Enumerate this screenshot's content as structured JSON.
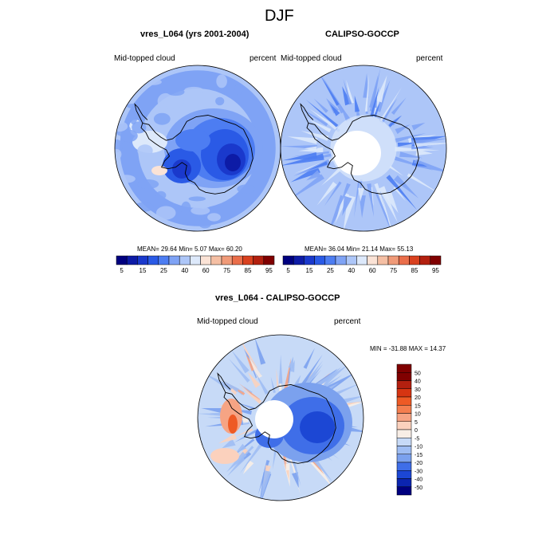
{
  "page_title": "DJF",
  "panels": [
    {
      "title": "vres_L064 (yrs 2001-2004)",
      "left_label": "Mid-topped cloud",
      "right_label": "percent",
      "stats": "MEAN=  29.64  Min=   5.07  Max=  60.20",
      "mean": 29.64,
      "min": 5.07,
      "max": 60.2,
      "colorbar_ticks": [
        "5",
        "15",
        "25",
        "40",
        "60",
        "75",
        "85",
        "95"
      ]
    },
    {
      "title": "CALIPSO-GOCCP",
      "left_label": "Mid-topped cloud",
      "right_label": "percent",
      "stats": "MEAN=  36.04  Min=  21.14  Max=  55.13",
      "mean": 36.04,
      "min": 21.14,
      "max": 55.13,
      "colorbar_ticks": [
        "5",
        "15",
        "25",
        "40",
        "60",
        "75",
        "85",
        "95"
      ]
    },
    {
      "title": "vres_L064 - CALIPSO-GOCCP",
      "left_label": "Mid-topped cloud",
      "right_label": "percent",
      "stats": "MIN = -31.88 MAX =  14.37",
      "min": -31.88,
      "max": 14.37,
      "colorbar_ticks": [
        "50",
        "40",
        "30",
        "20",
        "15",
        "10",
        "5",
        "0",
        "-5",
        "-10",
        "-15",
        "-20",
        "-30",
        "-40",
        "-50"
      ]
    }
  ],
  "colors": {
    "abs_scale": [
      "#00007f",
      "#0d1ba6",
      "#1a39cc",
      "#2a5ae6",
      "#4d7df2",
      "#7fa3f5",
      "#adc6f8",
      "#dde9fb",
      "#fbe3d6",
      "#f5bfa4",
      "#f09a78",
      "#ea6e4a",
      "#d9411f",
      "#b3200f",
      "#800000"
    ],
    "diff_scale": [
      "#800000",
      "#b3200f",
      "#d63512",
      "#ee5a25",
      "#f47e4f",
      "#f6a484",
      "#fbd1bd",
      "#f8eee6",
      "#c7daf7",
      "#9fbdf3",
      "#7ba1ee",
      "#3f6ee8",
      "#1c47d4",
      "#0b25b0",
      "#00007f"
    ]
  },
  "chart_data": [
    {
      "type": "heatmap",
      "projection": "south-polar-stereographic",
      "title": "vres_L064 (yrs 2001-2004)",
      "variable": "Mid-topped cloud",
      "units": "percent",
      "levels": [
        5,
        10,
        15,
        20,
        25,
        30,
        35,
        40,
        50,
        60,
        65,
        70,
        75,
        80,
        85,
        90,
        95
      ],
      "stats": {
        "mean": 29.64,
        "min": 5.07,
        "max": 60.2
      }
    },
    {
      "type": "heatmap",
      "projection": "south-polar-stereographic",
      "title": "CALIPSO-GOCCP",
      "variable": "Mid-topped cloud",
      "units": "percent",
      "levels": [
        5,
        10,
        15,
        20,
        25,
        30,
        35,
        40,
        50,
        60,
        65,
        70,
        75,
        80,
        85,
        90,
        95
      ],
      "stats": {
        "mean": 36.04,
        "min": 21.14,
        "max": 55.13
      }
    },
    {
      "type": "heatmap",
      "projection": "south-polar-stereographic",
      "title": "vres_L064 - CALIPSO-GOCCP",
      "variable": "Mid-topped cloud",
      "units": "percent",
      "levels": [
        -50,
        -40,
        -30,
        -20,
        -15,
        -10,
        -5,
        0,
        5,
        10,
        15,
        20,
        30,
        40,
        50
      ],
      "stats": {
        "min": -31.88,
        "max": 14.37
      }
    }
  ]
}
